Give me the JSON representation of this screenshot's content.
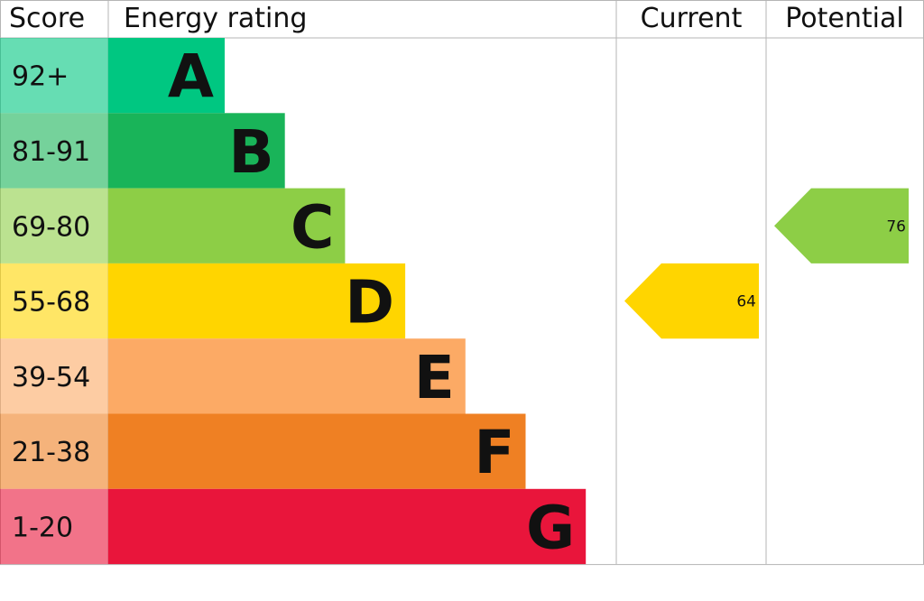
{
  "chart_data": {
    "type": "bar",
    "headers": {
      "score": "Score",
      "rating": "Energy rating",
      "current": "Current",
      "potential": "Potential"
    },
    "bands": [
      {
        "letter": "A",
        "range": "92+",
        "color": "#00c781"
      },
      {
        "letter": "B",
        "range": "81-91",
        "color": "#19b459"
      },
      {
        "letter": "C",
        "range": "69-80",
        "color": "#8dce46"
      },
      {
        "letter": "D",
        "range": "55-68",
        "color": "#ffd500"
      },
      {
        "letter": "E",
        "range": "39-54",
        "color": "#fcaa65"
      },
      {
        "letter": "F",
        "range": "21-38",
        "color": "#ef8023"
      },
      {
        "letter": "G",
        "range": "1-20",
        "color": "#e9153b"
      }
    ],
    "current": {
      "value": 64,
      "band": "D"
    },
    "potential": {
      "value": 76,
      "band": "C"
    }
  }
}
